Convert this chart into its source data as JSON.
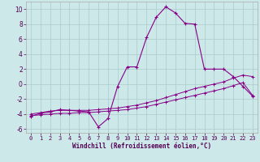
{
  "xlabel": "Windchill (Refroidissement éolien,°C)",
  "background_color": "#cce8e8",
  "line_color": "#880088",
  "grid_color": "#aacccc",
  "xlim": [
    -0.5,
    23.5
  ],
  "ylim": [
    -6.5,
    11.0
  ],
  "yticks": [
    -6,
    -4,
    -2,
    0,
    2,
    4,
    6,
    8,
    10
  ],
  "xticks": [
    0,
    1,
    2,
    3,
    4,
    5,
    6,
    7,
    8,
    9,
    10,
    11,
    12,
    13,
    14,
    15,
    16,
    17,
    18,
    19,
    20,
    21,
    22,
    23
  ],
  "line1_x": [
    0,
    1,
    2,
    3,
    4,
    5,
    6,
    7,
    8,
    9,
    10,
    11,
    12,
    13,
    14,
    15,
    16,
    17,
    18,
    19,
    20,
    21,
    22,
    23
  ],
  "line1_y": [
    -4.0,
    -3.8,
    -3.6,
    -3.5,
    -3.5,
    -3.5,
    -3.5,
    -3.4,
    -3.3,
    -3.2,
    -3.0,
    -2.8,
    -2.5,
    -2.2,
    -1.8,
    -1.4,
    -1.0,
    -0.6,
    -0.3,
    0.0,
    0.3,
    0.8,
    1.2,
    1.0
  ],
  "line2_x": [
    0,
    1,
    2,
    3,
    4,
    5,
    6,
    7,
    8,
    9,
    10,
    11,
    12,
    13,
    14,
    15,
    16,
    17,
    18,
    19,
    20,
    21,
    22,
    23
  ],
  "line2_y": [
    -4.2,
    -4.1,
    -4.0,
    -3.9,
    -3.9,
    -3.8,
    -3.8,
    -3.7,
    -3.6,
    -3.5,
    -3.4,
    -3.2,
    -3.0,
    -2.7,
    -2.4,
    -2.1,
    -1.8,
    -1.5,
    -1.2,
    -0.9,
    -0.6,
    -0.2,
    0.2,
    -1.5
  ],
  "line3_x": [
    0,
    1,
    2,
    3,
    4,
    5,
    6,
    7,
    8,
    9,
    10,
    11,
    12,
    13,
    14,
    15,
    16,
    17,
    18,
    19,
    20,
    21,
    22,
    23
  ],
  "line3_y": [
    -4.3,
    -3.9,
    -3.7,
    -3.4,
    -3.5,
    -3.6,
    -3.7,
    -5.7,
    -4.6,
    -0.3,
    2.3,
    2.3,
    6.2,
    8.9,
    10.3,
    9.5,
    8.1,
    8.0,
    2.0,
    2.0,
    2.0,
    1.0,
    -0.3,
    -1.6
  ],
  "figsize": [
    3.2,
    2.0
  ],
  "dpi": 100
}
